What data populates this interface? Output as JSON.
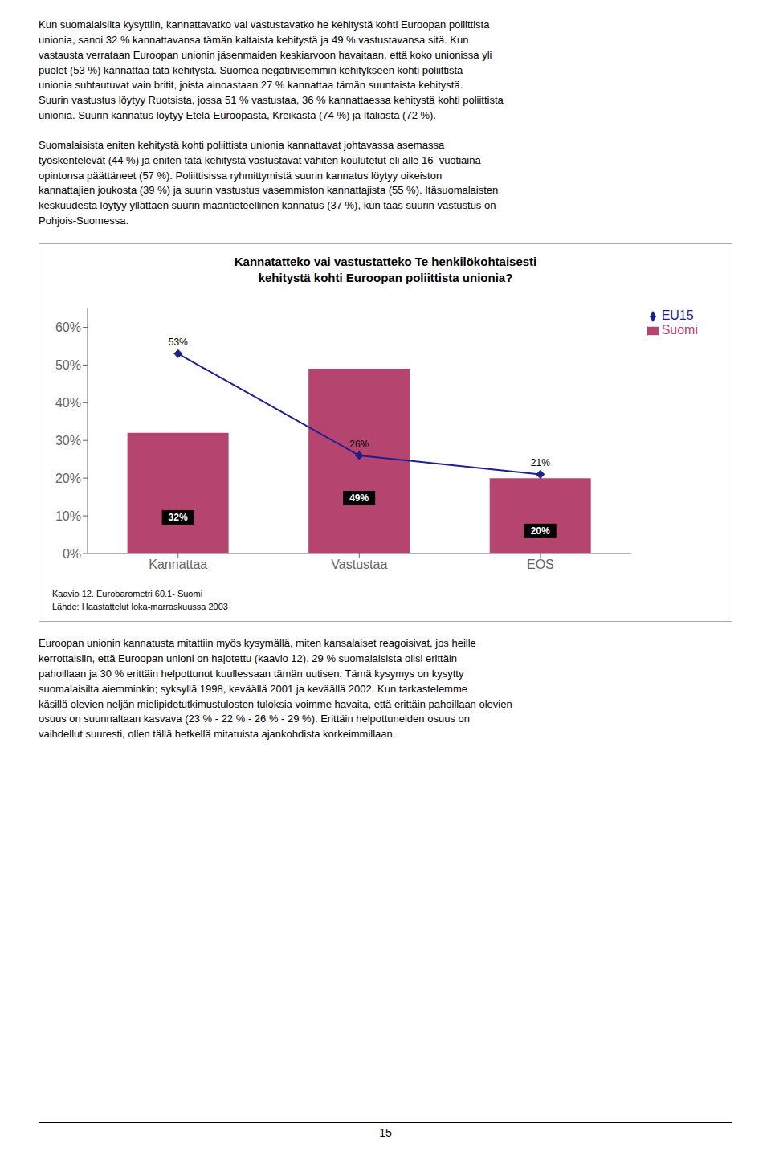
{
  "page_text": {
    "before": [
      "Kun suomalaisilta kysyttiin, kannattavatko vai vastustavatko he kehitystä kohti Euroopan poliittista\nunionia, sanoi 32 % kannattavansa tämän kaltaista kehitystä ja 49 % vastustavansa sitä. Kun\nvastausta verrataan Euroopan unionin jäsenmaiden keskiarvoon havaitaan, että koko unionissa yli\npuolet (53 %) kannattaa tätä kehitystä. Suomea negatiivisemmin kehitykseen kohti poliittista\nunionia suhtautuvat vain britit, joista ainoastaan 27 % kannattaa tämän suuntaista kehitystä.\nSuurin vastustus löytyy Ruotsista, jossa 51 % vastustaa, 36 % kannattaessa kehitystä kohti poliittista\nunionia. Suurin kannatus löytyy Etelä-Euroopasta, Kreikasta (74 %) ja Italiasta (72 %).",
      "Suomalaisista eniten kehitystä kohti poliittista unionia kannattavat johtavassa asemassa\ntyöskentelevät (44 %) ja eniten tätä kehitystä vastustavat vähiten koulutetut eli alle 16–vuotiaina\nopintonsa päättäneet (57 %). Poliittisissa ryhmittymistä suurin kannatus löytyy oikeiston\nkannattajien joukosta (39 %) ja suurin vastustus vasemmiston kannattajista (55 %). Itäsuomalaisten\nkeskuudesta löytyy yllättäen suurin maantieteellinen kannatus (37 %), kun taas suurin vastustus on\nPohjois-Suomessa."
    ],
    "after": [
      "Euroopan unionin kannatusta mitattiin myös kysymällä, miten kansalaiset reagoisivat, jos heille\nkerrottaisiin, että Euroopan unioni on hajotettu (kaavio 12). 29 % suomalaisista olisi erittäin\npahoillaan ja 30 % erittäin helpottunut kuullessaan tämän uutisen. Tämä kysymys on kysytty\nsuomalaisilta aiemminkin; syksyllä 1998, keväällä 2001 ja keväällä 2002. Kun tarkastelemme\nkäsillä olevien neljän mielipidetutkimustulosten tuloksia voimme havaita, että erittäin pahoillaan olevien\nosuus on suunnaltaan kasvava (23 % - 22 % - 26 % - 29 %). Erittäin helpottuneiden osuus on\nvaihdellut suuresti, ollen tällä hetkellä mitatuista ajankohdista korkeimmillaan."
    ],
    "page_number": "15"
  },
  "chart_data": {
    "type": "bar",
    "title": "Kannatatteko vai vastustatteko Te henkilökohtaisesti\nkehitystä kohti Euroopan poliittista unionia?",
    "categories": [
      "Kannattaa",
      "Vastustaa",
      "EOS"
    ],
    "series": [
      {
        "name": "Suomi",
        "type": "bar",
        "color": "#b5456e",
        "values": [
          32,
          49,
          20
        ],
        "value_labels": [
          "32%",
          "49%",
          "20%"
        ]
      },
      {
        "name": "EU15",
        "type": "line",
        "color": "#1f1f8f",
        "marker": "diamond",
        "values": [
          53,
          26,
          21
        ],
        "value_labels": [
          "53%",
          "26%",
          "21%"
        ]
      }
    ],
    "ylim": [
      0,
      65
    ],
    "yticks": [
      {
        "value": 0,
        "label": "0%"
      },
      {
        "value": 10,
        "label": "10%"
      },
      {
        "value": 20,
        "label": "20%"
      },
      {
        "value": 30,
        "label": "30%"
      },
      {
        "value": 40,
        "label": "40%"
      },
      {
        "value": 50,
        "label": "50%"
      },
      {
        "value": 60,
        "label": "60%"
      }
    ],
    "grid": false,
    "legend": "right",
    "data_labels": true,
    "annotations": [
      "Kaavio 12. Eurobarometri 60.1- Suomi",
      "Lähde: Haastattelut loka-marraskuussa 2003"
    ]
  }
}
